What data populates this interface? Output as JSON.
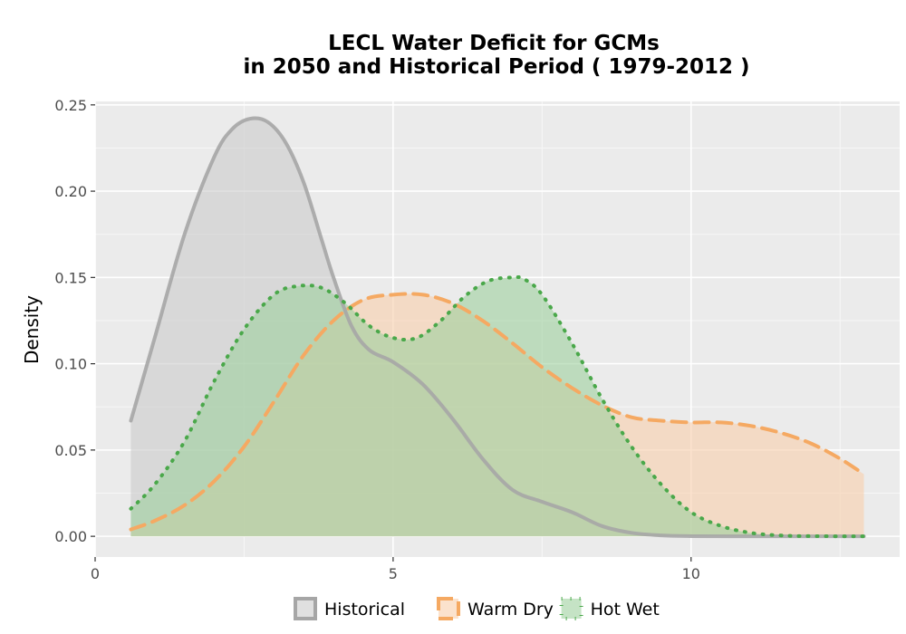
{
  "chart_data": {
    "type": "area",
    "title": [
      "LECL  Water Deficit for GCMs",
      "in 2050 and Historical Period ( 1979-2012 )"
    ],
    "xlabel": "",
    "ylabel": "Density",
    "xlim": [
      0,
      13.5
    ],
    "ylim": [
      -0.012,
      0.252
    ],
    "x_ticks": [
      0,
      5,
      10
    ],
    "y_ticks": [
      0.0,
      0.05,
      0.1,
      0.15,
      0.2,
      0.25
    ],
    "x_tick_labels": [
      "0",
      "5",
      "10"
    ],
    "y_tick_labels": [
      "0.00",
      "0.05",
      "0.10",
      "0.15",
      "0.20",
      "0.25"
    ],
    "grid": true,
    "legend_position": "bottom",
    "series": [
      {
        "name": "Historical",
        "line_color": "#a6a6a6",
        "fill_color": "#cccccc",
        "line_style": "solid",
        "x": [
          0.6,
          1.0,
          1.5,
          2.0,
          2.3,
          2.6,
          2.9,
          3.2,
          3.5,
          3.8,
          4.0,
          4.3,
          4.6,
          5.0,
          5.5,
          6.0,
          6.5,
          7.0,
          7.5,
          8.0,
          8.5,
          9.0,
          9.5,
          10.0,
          11.0,
          12.0,
          12.9
        ],
        "y": [
          0.067,
          0.115,
          0.175,
          0.22,
          0.236,
          0.242,
          0.24,
          0.228,
          0.205,
          0.172,
          0.15,
          0.122,
          0.108,
          0.101,
          0.088,
          0.068,
          0.045,
          0.027,
          0.02,
          0.014,
          0.006,
          0.002,
          0.0005,
          0.0001,
          0.0,
          0.0,
          0.0
        ]
      },
      {
        "name": "Warm Dry",
        "line_color": "#f5a962",
        "fill_color": "#f8cfac",
        "line_style": "dashed",
        "x": [
          0.6,
          1.0,
          1.5,
          2.0,
          2.5,
          3.0,
          3.5,
          4.0,
          4.5,
          5.0,
          5.5,
          6.0,
          6.5,
          7.0,
          7.5,
          8.0,
          8.5,
          9.0,
          9.5,
          10.0,
          10.5,
          11.0,
          11.5,
          12.0,
          12.5,
          12.9
        ],
        "y": [
          0.004,
          0.009,
          0.018,
          0.032,
          0.052,
          0.078,
          0.105,
          0.125,
          0.137,
          0.14,
          0.14,
          0.135,
          0.125,
          0.112,
          0.098,
          0.086,
          0.076,
          0.069,
          0.067,
          0.066,
          0.066,
          0.064,
          0.06,
          0.054,
          0.045,
          0.036
        ]
      },
      {
        "name": "Hot Wet",
        "line_color": "#4aa84a",
        "fill_color": "#9fd09f",
        "line_style": "dotted",
        "x": [
          0.6,
          1.0,
          1.5,
          2.0,
          2.5,
          3.0,
          3.4,
          3.8,
          4.2,
          4.6,
          5.0,
          5.4,
          5.8,
          6.2,
          6.6,
          7.0,
          7.2,
          7.5,
          8.0,
          8.5,
          9.0,
          9.5,
          10.0,
          10.5,
          11.0,
          11.5,
          12.0,
          12.9
        ],
        "y": [
          0.016,
          0.03,
          0.055,
          0.09,
          0.12,
          0.14,
          0.145,
          0.144,
          0.135,
          0.122,
          0.115,
          0.115,
          0.125,
          0.139,
          0.148,
          0.15,
          0.149,
          0.14,
          0.112,
          0.08,
          0.052,
          0.03,
          0.014,
          0.006,
          0.002,
          0.0005,
          0.0001,
          0.0
        ]
      }
    ]
  }
}
